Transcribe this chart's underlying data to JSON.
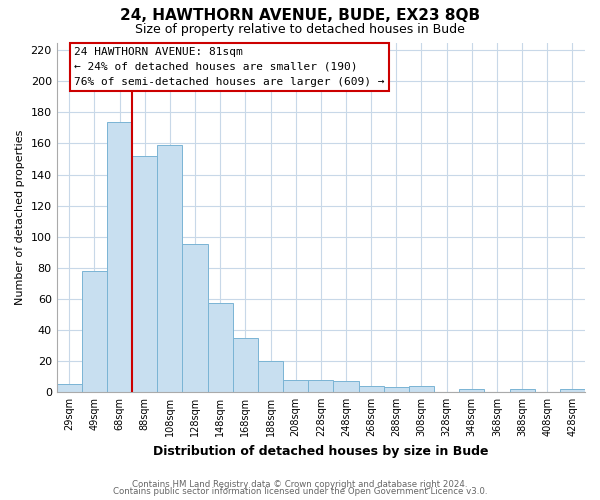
{
  "title": "24, HAWTHORN AVENUE, BUDE, EX23 8QB",
  "subtitle": "Size of property relative to detached houses in Bude",
  "xlabel": "Distribution of detached houses by size in Bude",
  "ylabel": "Number of detached properties",
  "bar_labels": [
    "29sqm",
    "49sqm",
    "68sqm",
    "88sqm",
    "108sqm",
    "128sqm",
    "148sqm",
    "168sqm",
    "188sqm",
    "208sqm",
    "228sqm",
    "248sqm",
    "268sqm",
    "288sqm",
    "308sqm",
    "328sqm",
    "348sqm",
    "368sqm",
    "388sqm",
    "408sqm",
    "428sqm"
  ],
  "bar_values": [
    5,
    78,
    174,
    152,
    159,
    95,
    57,
    35,
    20,
    8,
    8,
    7,
    4,
    3,
    4,
    0,
    2,
    0,
    2,
    0,
    2
  ],
  "bar_color": "#c8dff0",
  "bar_edge_color": "#7ab4d4",
  "property_line_x": 3.0,
  "annotation_title": "24 HAWTHORN AVENUE: 81sqm",
  "annotation_line1": "← 24% of detached houses are smaller (190)",
  "annotation_line2": "76% of semi-detached houses are larger (609) →",
  "annotation_box_color": "#ffffff",
  "annotation_box_edge": "#cc0000",
  "vline_color": "#cc0000",
  "ylim": [
    0,
    225
  ],
  "yticks": [
    0,
    20,
    40,
    60,
    80,
    100,
    120,
    140,
    160,
    180,
    200,
    220
  ],
  "footer_line1": "Contains HM Land Registry data © Crown copyright and database right 2024.",
  "footer_line2": "Contains public sector information licensed under the Open Government Licence v3.0.",
  "bg_color": "#ffffff",
  "grid_color": "#c8d8e8"
}
